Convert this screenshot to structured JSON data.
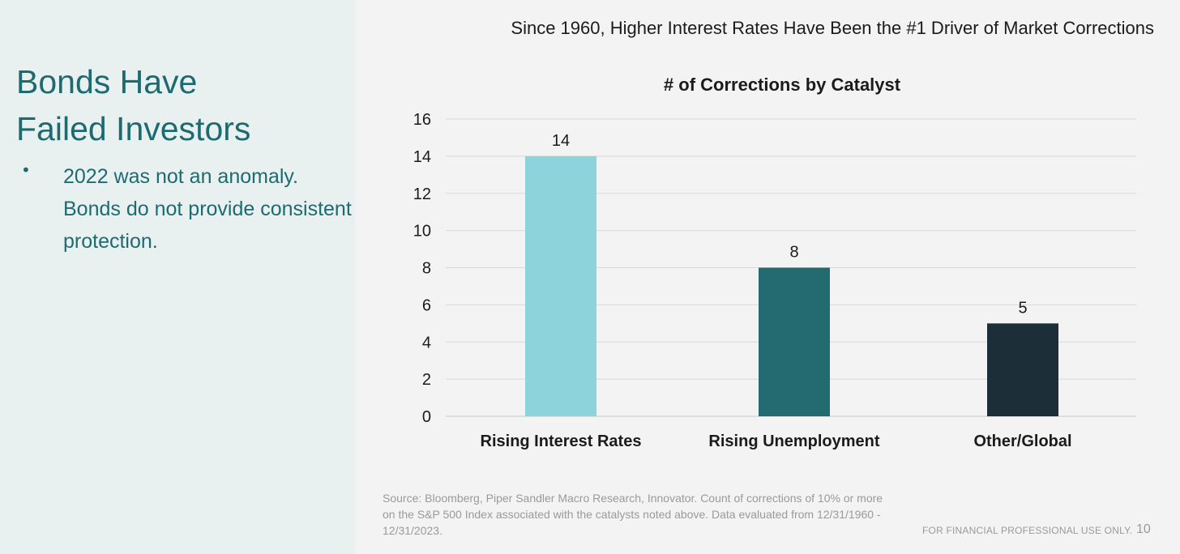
{
  "sidebar": {
    "title_line1": "Bonds Have",
    "title_line2": "Failed Investors",
    "bullet": "•",
    "bullet_text": "2022 was not an anomaly. Bonds do not provide consistent protection."
  },
  "headline": "Since 1960, Higher Interest Rates Have Been the #1 Driver of Market Corrections",
  "chart_data": {
    "type": "bar",
    "title": "# of Corrections by Catalyst",
    "categories": [
      "Rising Interest Rates",
      "Rising Unemployment",
      "Other/Global"
    ],
    "values": [
      14,
      8,
      5
    ],
    "colors": [
      "#8dd3dc",
      "#236b70",
      "#1c2f38"
    ],
    "ylim": [
      0,
      16
    ],
    "yticks": [
      0,
      2,
      4,
      6,
      8,
      10,
      12,
      14,
      16
    ],
    "grid": true,
    "data_labels": true,
    "xlabel": "",
    "ylabel": ""
  },
  "footer": {
    "source": "Source: Bloomberg, Piper Sandler Macro Research, Innovator. Count of corrections of 10% or more on the S&P 500 Index associated with the catalysts noted above. Data evaluated from 12/31/1960 - 12/31/2023.",
    "disclaimer": "FOR FINANCIAL PROFESSIONAL USE ONLY.",
    "page_number": "10"
  }
}
